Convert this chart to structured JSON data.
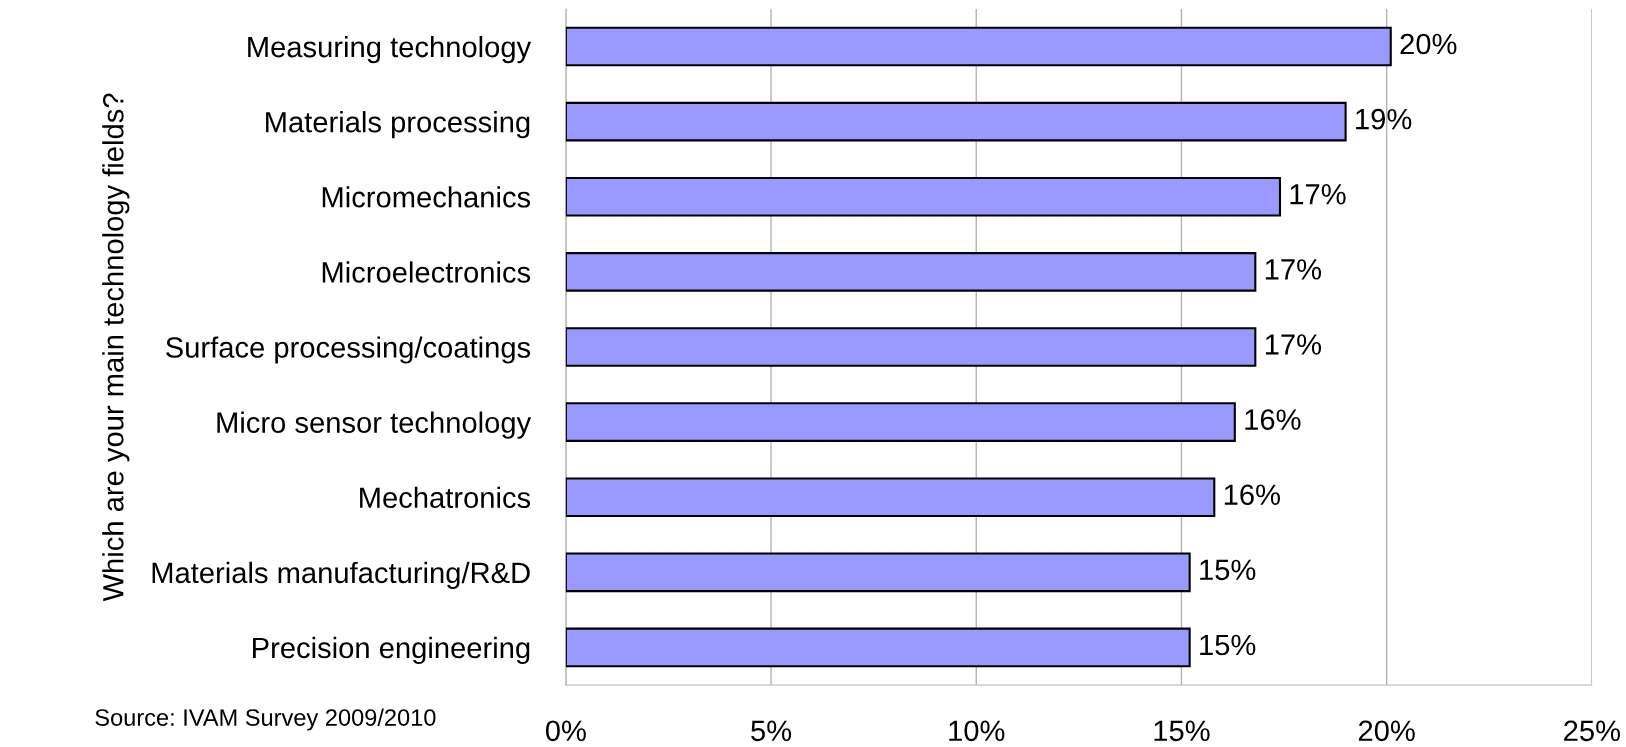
{
  "chart_data": {
    "type": "bar",
    "orientation": "horizontal",
    "ylabel": "Which are your main technology fields?",
    "categories": [
      "Measuring technology",
      "Materials processing",
      "Micromechanics",
      "Microelectronics",
      "Surface processing/coatings",
      "Micro sensor technology",
      "Mechatronics",
      "Materials manufacturing/R&D",
      "Precision engineering"
    ],
    "values": [
      20.1,
      19.0,
      17.4,
      16.8,
      16.8,
      16.3,
      15.8,
      15.2,
      15.2
    ],
    "value_labels": [
      "20%",
      "19%",
      "17%",
      "17%",
      "17%",
      "16%",
      "16%",
      "15%",
      "15%"
    ],
    "color": "#9999ff",
    "xlim": [
      0,
      25
    ],
    "xticks": [
      {
        "value": 0,
        "label": "0%"
      },
      {
        "value": 5,
        "label": "5%"
      },
      {
        "value": 10,
        "label": "10%"
      },
      {
        "value": 15,
        "label": "15%"
      },
      {
        "value": 20,
        "label": "20%"
      },
      {
        "value": 25,
        "label": "25%"
      }
    ],
    "grid": "x",
    "legend": false,
    "annotations": [
      "Source: IVAM Survey 2009/2010"
    ]
  }
}
